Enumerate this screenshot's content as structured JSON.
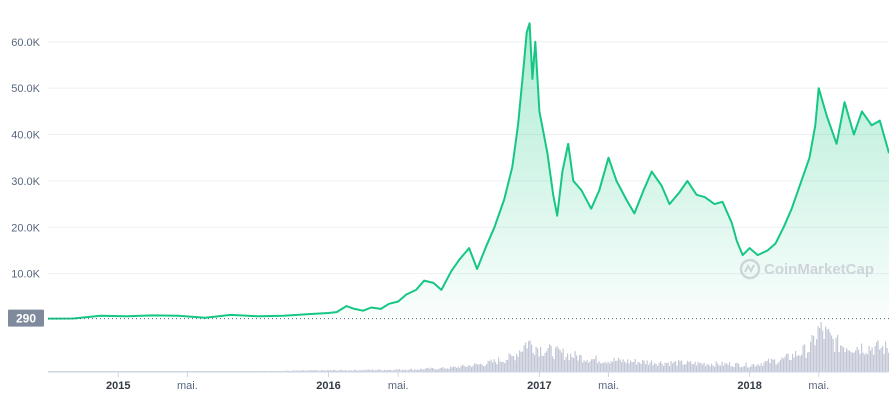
{
  "chart_data": {
    "type": "area",
    "title": "",
    "xlabel": "",
    "ylabel": "",
    "y_ticks": [
      "10.0K",
      "20.0K",
      "30.0K",
      "40.0K",
      "50.0K",
      "60.0K"
    ],
    "y_tick_values": [
      10000,
      20000,
      30000,
      40000,
      50000,
      60000
    ],
    "ylim": [
      0,
      66000
    ],
    "xlim": [
      "2014-09-01",
      "2018-08-31"
    ],
    "x_ticks": [
      {
        "label": "2015",
        "date": "2015-01-01",
        "major": true
      },
      {
        "label": "mai.",
        "date": "2015-05-01",
        "major": false
      },
      {
        "label": "2016",
        "date": "2016-01-01",
        "major": true
      },
      {
        "label": "mai.",
        "date": "2016-05-01",
        "major": false
      },
      {
        "label": "2017",
        "date": "2017-01-01",
        "major": true
      },
      {
        "label": "mai.",
        "date": "2017-05-01",
        "major": false
      },
      {
        "label": "2018",
        "date": "2018-01-01",
        "major": true
      },
      {
        "label": "mai.",
        "date": "2018-05-01",
        "major": false
      }
    ],
    "baseline_label": "290",
    "baseline_value": 290,
    "grid": true,
    "line_color": "#16c784",
    "fill_color": "#16c784",
    "volume_color": "#b8bed0",
    "watermark": "CoinMarketCap",
    "series": [
      {
        "points": [
          [
            "2014-09-01",
            300
          ],
          [
            "2014-10-15",
            320
          ],
          [
            "2014-12-01",
            900
          ],
          [
            "2015-01-15",
            800
          ],
          [
            "2015-03-01",
            1000
          ],
          [
            "2015-04-15",
            900
          ],
          [
            "2015-06-01",
            500
          ],
          [
            "2015-07-15",
            1100
          ],
          [
            "2015-09-01",
            800
          ],
          [
            "2015-10-15",
            900
          ],
          [
            "2015-12-01",
            1300
          ],
          [
            "2016-01-01",
            1500
          ],
          [
            "2016-01-15",
            1700
          ],
          [
            "2016-02-01",
            3000
          ],
          [
            "2016-02-15",
            2400
          ],
          [
            "2016-03-01",
            2000
          ],
          [
            "2016-03-15",
            2700
          ],
          [
            "2016-04-01",
            2400
          ],
          [
            "2016-04-15",
            3500
          ],
          [
            "2016-05-01",
            4000
          ],
          [
            "2016-05-15",
            5500
          ],
          [
            "2016-06-01",
            6500
          ],
          [
            "2016-06-15",
            8500
          ],
          [
            "2016-07-01",
            8000
          ],
          [
            "2016-07-15",
            6500
          ],
          [
            "2016-08-01",
            10500
          ],
          [
            "2016-08-15",
            13000
          ],
          [
            "2016-09-01",
            15500
          ],
          [
            "2016-09-15",
            11000
          ],
          [
            "2016-10-01",
            16000
          ],
          [
            "2016-10-15",
            20000
          ],
          [
            "2016-11-01",
            26000
          ],
          [
            "2016-11-15",
            33000
          ],
          [
            "2016-11-25",
            42000
          ],
          [
            "2016-12-05",
            55000
          ],
          [
            "2016-12-10",
            62000
          ],
          [
            "2016-12-15",
            64000
          ],
          [
            "2016-12-20",
            52000
          ],
          [
            "2016-12-25",
            60000
          ],
          [
            "2017-01-01",
            45000
          ],
          [
            "2017-01-15",
            36000
          ],
          [
            "2017-01-25",
            27000
          ],
          [
            "2017-02-01",
            22500
          ],
          [
            "2017-02-10",
            32000
          ],
          [
            "2017-02-20",
            38000
          ],
          [
            "2017-03-01",
            30000
          ],
          [
            "2017-03-15",
            28000
          ],
          [
            "2017-04-01",
            24000
          ],
          [
            "2017-04-15",
            28000
          ],
          [
            "2017-05-01",
            35000
          ],
          [
            "2017-05-15",
            30000
          ],
          [
            "2017-06-01",
            26000
          ],
          [
            "2017-06-15",
            23000
          ],
          [
            "2017-07-01",
            28000
          ],
          [
            "2017-07-15",
            32000
          ],
          [
            "2017-08-01",
            29000
          ],
          [
            "2017-08-15",
            25000
          ],
          [
            "2017-09-01",
            27500
          ],
          [
            "2017-09-15",
            30000
          ],
          [
            "2017-10-01",
            27000
          ],
          [
            "2017-10-15",
            26500
          ],
          [
            "2017-11-01",
            25000
          ],
          [
            "2017-11-15",
            25500
          ],
          [
            "2017-12-01",
            21000
          ],
          [
            "2017-12-10",
            17000
          ],
          [
            "2017-12-20",
            14000
          ],
          [
            "2018-01-01",
            15500
          ],
          [
            "2018-01-15",
            14000
          ],
          [
            "2018-02-01",
            15000
          ],
          [
            "2018-02-15",
            16500
          ],
          [
            "2018-03-01",
            20000
          ],
          [
            "2018-03-15",
            24000
          ],
          [
            "2018-04-01",
            30000
          ],
          [
            "2018-04-15",
            35000
          ],
          [
            "2018-04-25",
            42000
          ],
          [
            "2018-05-01",
            50000
          ],
          [
            "2018-05-15",
            44000
          ],
          [
            "2018-06-01",
            38000
          ],
          [
            "2018-06-15",
            47000
          ],
          [
            "2018-07-01",
            40000
          ],
          [
            "2018-07-15",
            45000
          ],
          [
            "2018-08-01",
            42000
          ],
          [
            "2018-08-15",
            43000
          ],
          [
            "2018-08-31",
            36000
          ]
        ]
      }
    ],
    "volume": [
      [
        "2014-09-01",
        0.01
      ],
      [
        "2015-09-01",
        0.02
      ],
      [
        "2016-06-01",
        0.06
      ],
      [
        "2016-08-01",
        0.1
      ],
      [
        "2016-10-01",
        0.2
      ],
      [
        "2016-11-15",
        0.35
      ],
      [
        "2016-12-10",
        0.7
      ],
      [
        "2017-01-01",
        0.55
      ],
      [
        "2017-02-01",
        0.45
      ],
      [
        "2017-04-01",
        0.3
      ],
      [
        "2017-06-01",
        0.25
      ],
      [
        "2017-08-01",
        0.22
      ],
      [
        "2017-10-01",
        0.2
      ],
      [
        "2017-12-01",
        0.18
      ],
      [
        "2018-01-01",
        0.16
      ],
      [
        "2018-03-01",
        0.3
      ],
      [
        "2018-04-15",
        0.55
      ],
      [
        "2018-05-01",
        1.0
      ],
      [
        "2018-06-01",
        0.65
      ],
      [
        "2018-07-01",
        0.6
      ],
      [
        "2018-08-31",
        0.55
      ]
    ]
  }
}
